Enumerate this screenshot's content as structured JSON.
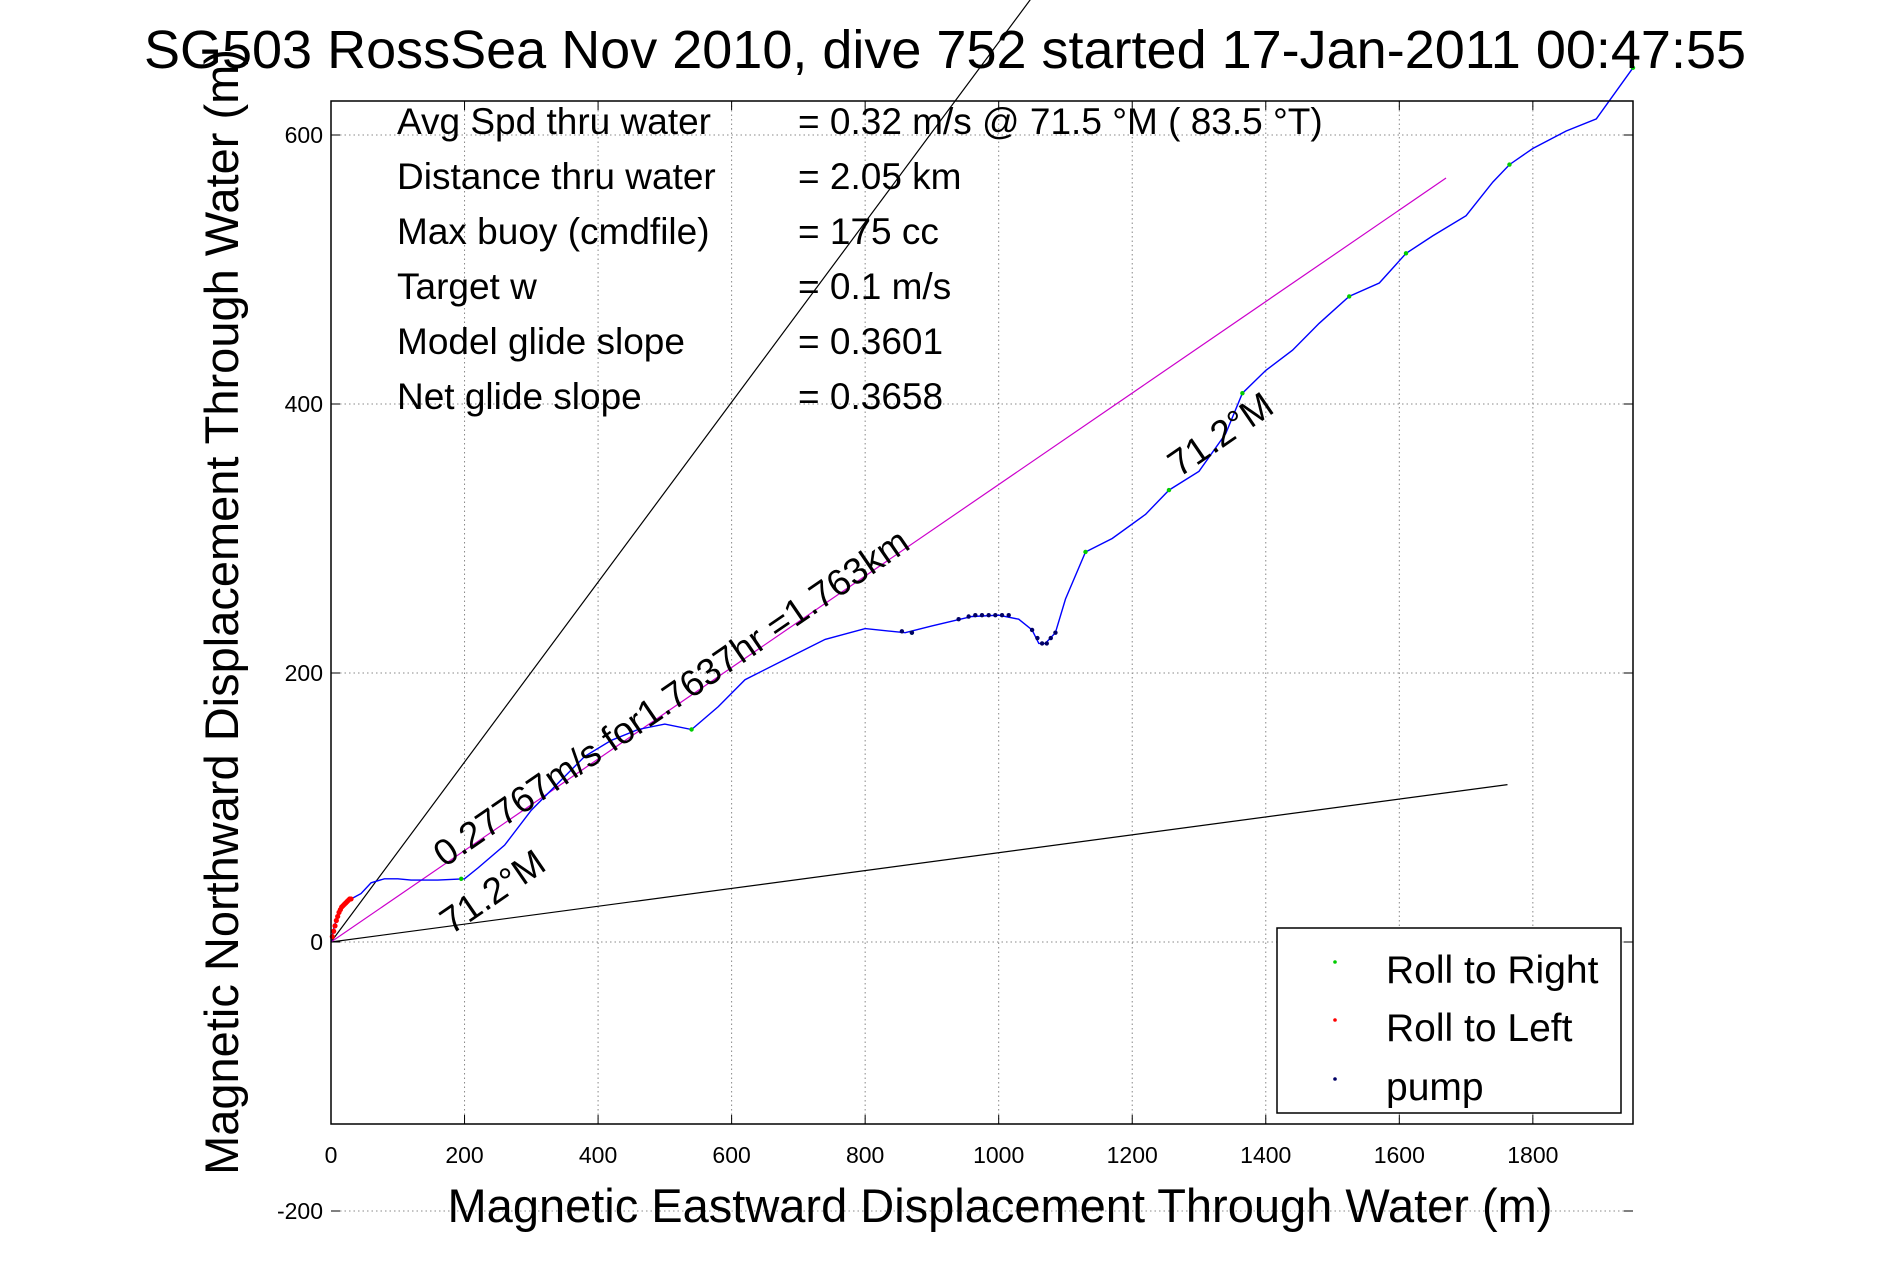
{
  "chart_data": {
    "type": "line",
    "title": "SG503 RossSea Nov 2010, dive 752 started 17-Jan-2011 00:47:55",
    "xlabel": "Magnetic Eastward Displacement Through Water (m)",
    "ylabel": "Magnetic Northward Displacement Through Water (m)",
    "xlim": [
      0,
      1950
    ],
    "ylim": [
      -275,
      1260
    ],
    "xticks": [
      0,
      200,
      400,
      600,
      800,
      1000,
      1200,
      1400,
      1600,
      1800
    ],
    "yticks": [
      -200,
      0,
      200,
      400,
      600,
      800,
      1000,
      1200
    ],
    "grid": true,
    "legend_position": "bottom-right",
    "stats": [
      {
        "label": "Avg Spd thru water",
        "value": "=  0.32 m/s @  71.5 °M ( 83.5 °T)"
      },
      {
        "label": "Distance thru water",
        "value": "=  2.05 km"
      },
      {
        "label": "Max buoy (cmdfile)",
        "value": "= 175 cc"
      },
      {
        "label": "Target w",
        "value": "= 0.1 m/s"
      },
      {
        "label": "Model glide slope",
        "value": "= 0.3601"
      },
      {
        "label": "Net glide slope",
        "value": "= 0.3658"
      }
    ],
    "annotations": {
      "track_text": "0.27767m/s for1.7637hr =1.763km",
      "heading_start": "71.2°M",
      "heading_end": "71.2°M"
    },
    "reference_lines": [
      {
        "name": "upper bound",
        "x": [
          0,
          1465
        ],
        "y": [
          0,
          980
        ],
        "color": "#000000"
      },
      {
        "name": "lower bound",
        "x": [
          0,
          1762
        ],
        "y": [
          0,
          117
        ],
        "color": "#000000"
      },
      {
        "name": "net heading",
        "x": [
          0,
          1670
        ],
        "y": [
          0,
          568
        ],
        "color": "#cc00cc"
      }
    ],
    "series": [
      {
        "name": "track",
        "color": "#0000ff",
        "x": [
          0,
          5,
          12,
          20,
          30,
          45,
          60,
          80,
          100,
          120,
          160,
          200,
          220,
          260,
          300,
          340,
          380,
          420,
          460,
          500,
          540,
          580,
          620,
          680,
          740,
          800,
          860,
          900,
          960,
          1000,
          1030,
          1050,
          1060,
          1070,
          1085,
          1100,
          1130,
          1170,
          1220,
          1255,
          1300,
          1340,
          1365,
          1400,
          1440,
          1480,
          1525,
          1570,
          1610,
          1650,
          1700,
          1740,
          1765,
          1800,
          1850,
          1895,
          1950
        ],
        "y": [
          0,
          12,
          22,
          28,
          32,
          36,
          44,
          47,
          47,
          46,
          46,
          47,
          55,
          72,
          98,
          118,
          138,
          150,
          158,
          162,
          158,
          175,
          195,
          210,
          225,
          233,
          230,
          235,
          242,
          243,
          240,
          232,
          222,
          222,
          230,
          255,
          290,
          300,
          318,
          336,
          350,
          378,
          408,
          425,
          440,
          460,
          480,
          490,
          512,
          525,
          540,
          565,
          578,
          590,
          603,
          612,
          650
        ]
      }
    ],
    "markers": {
      "roll_right": {
        "name": "Roll to Right",
        "color": "#00cc00",
        "x": [
          195,
          540,
          870,
          1130,
          1255,
          1365,
          1525,
          1610,
          1765,
          1950
        ],
        "y": [
          47,
          158,
          230,
          290,
          336,
          408,
          480,
          512,
          578,
          650
        ]
      },
      "roll_left": {
        "name": "Roll to Left",
        "color": "#ff0000",
        "x": [
          2,
          4,
          6,
          8,
          10,
          12,
          14,
          16,
          18,
          20,
          22,
          24,
          26,
          28,
          30
        ],
        "y": [
          4,
          8,
          12,
          16,
          19,
          22,
          24,
          26,
          27,
          28,
          29,
          30,
          31,
          32,
          32
        ]
      },
      "pump": {
        "name": "pump",
        "color": "#000066",
        "x": [
          855,
          870,
          940,
          955,
          965,
          975,
          985,
          995,
          1005,
          1015,
          1050,
          1058,
          1065,
          1072,
          1078,
          1085
        ],
        "y": [
          231,
          230,
          240,
          242,
          243,
          243,
          243,
          243,
          243,
          243,
          232,
          226,
          222,
          222,
          226,
          230
        ]
      }
    }
  }
}
